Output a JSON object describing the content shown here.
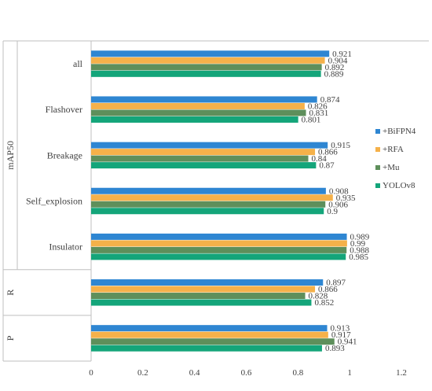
{
  "colors": {
    "+BiFPN4": "#2E86D2",
    "+RFA": "#F5B14A",
    "+Mu": "#5E8F5B",
    "YOLOv8": "#14A57A",
    "axis": "#bfbfbf",
    "label": "#404040"
  },
  "chart_data": {
    "type": "bar",
    "orientation": "horizontal",
    "title": "",
    "xlabel": "",
    "ylabel": "",
    "xlim": [
      0,
      1.2
    ],
    "x_ticks": [
      "0",
      "0.2",
      "0.4",
      "0.6",
      "0.8",
      "1",
      "1.2"
    ],
    "grid": false,
    "legend_position": "right",
    "group_labels": [
      "mAP50",
      "R",
      "P"
    ],
    "categories": [
      "all",
      "Flashover",
      "Breakage",
      "Self_explosion",
      "Insulator",
      "",
      ""
    ],
    "category_groups": [
      "mAP50",
      "mAP50",
      "mAP50",
      "mAP50",
      "mAP50",
      "R",
      "P"
    ],
    "series": [
      {
        "name": "+BiFPN4",
        "values": [
          0.921,
          0.874,
          0.915,
          0.908,
          0.989,
          0.897,
          0.913
        ],
        "labels": [
          "0.921",
          "0.874",
          "0.915",
          "0.908",
          "0.989",
          "0.897",
          "0.913"
        ]
      },
      {
        "name": "+RFA",
        "values": [
          0.904,
          0.826,
          0.866,
          0.935,
          0.99,
          0.866,
          0.917
        ],
        "labels": [
          "0.904",
          "0.826",
          "0.866",
          "0.935",
          "0.99",
          "0.866",
          "0.917"
        ]
      },
      {
        "name": "+Mu",
        "values": [
          0.892,
          0.831,
          0.84,
          0.906,
          0.988,
          0.828,
          0.941
        ],
        "labels": [
          "0.892",
          "0.831",
          "0.84",
          "0.906",
          "0.988",
          "0.828",
          "0.941"
        ]
      },
      {
        "name": "YOLOv8",
        "values": [
          0.889,
          0.801,
          0.87,
          0.9,
          0.985,
          0.852,
          0.893
        ],
        "labels": [
          "0.889",
          "0.801",
          "0.87",
          "0.9",
          "0.985",
          "0.852",
          "0.893"
        ]
      }
    ]
  }
}
